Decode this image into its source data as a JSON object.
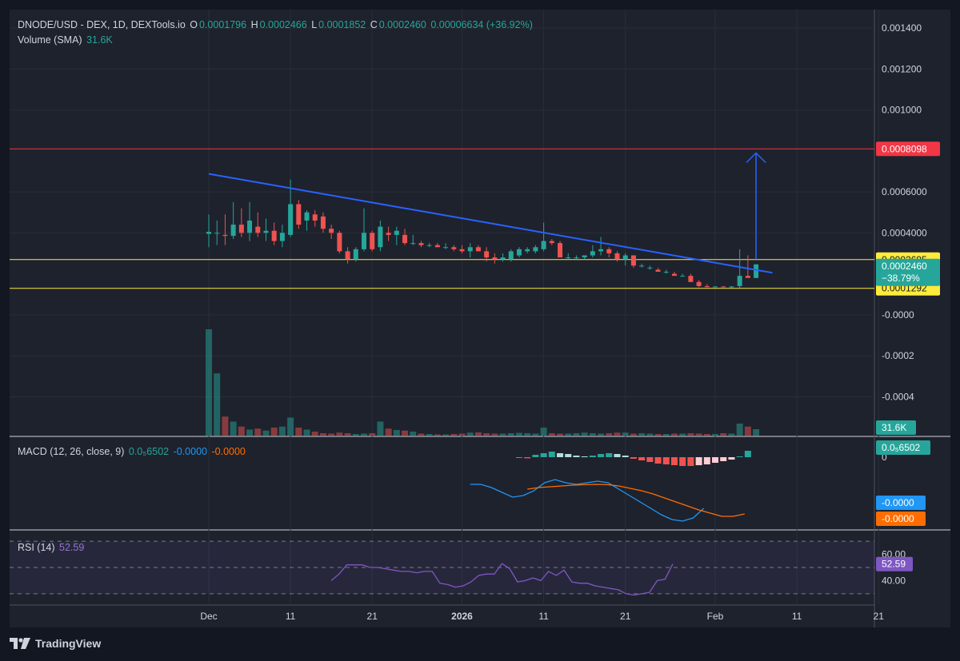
{
  "header": {
    "symbol": "DNODE/USD - DEX, 1D, DEXTools.io",
    "o_label": "O",
    "o_value": "0.0001796",
    "h_label": "H",
    "h_value": "0.0002466",
    "l_label": "L",
    "l_value": "0.0001852",
    "c_label": "C",
    "c_value": "0.0002460",
    "change": "0.00006634 (+36.92%)",
    "volume_label": "Volume (SMA)",
    "volume_value": "31.6K",
    "macd_label": "MACD (12, 26, close, 9)",
    "macd_hist": "0.0₅6502",
    "macd_line": "-0.0000",
    "macd_signal": "-0.0000",
    "rsi_label": "RSI (14)",
    "rsi_value": "52.59"
  },
  "brand": {
    "name": "TradingView"
  },
  "colors": {
    "background": "#131722",
    "panel": "#1e222d",
    "grid": "#2a2e39",
    "up": "#26a69a",
    "down": "#ef5350",
    "trendline": "#2962ff",
    "resistance": "#f23645",
    "support": "#ffeb3b",
    "macd": "#2196f3",
    "signal": "#ff6d00",
    "rsi": "#7e57c2"
  },
  "chart_data": [
    {
      "type": "candlestick",
      "title": "DNODE/USD - DEX, 1D, DEXTools.io",
      "x_tick_labels": [
        "Dec",
        "11",
        "21",
        "2026",
        "11",
        "21",
        "Feb",
        "11",
        "21"
      ],
      "y_tick_labels": [
        "0.001400",
        "0.001200",
        "0.001000",
        "0.0006000",
        "0.0004000",
        "-0.0000",
        "-0.0002",
        "-0.0004"
      ],
      "y_ticks": [
        0.0014,
        0.0012,
        0.001,
        0.0006,
        0.0004,
        0,
        -0.0002,
        -0.0004
      ],
      "ylim": [
        -0.00059,
        0.00149
      ],
      "candles": [
        {
          "date": "2025-12-01",
          "o": 0.000395,
          "h": 0.00049,
          "l": 0.00033,
          "c": 0.000405
        },
        {
          "date": "2025-12-02",
          "o": 0.0004,
          "h": 0.00046,
          "l": 0.00034,
          "c": 0.0004
        },
        {
          "date": "2025-12-03",
          "o": 0.00039,
          "h": 0.00049,
          "l": 0.00034,
          "c": 0.000385
        },
        {
          "date": "2025-12-04",
          "o": 0.000385,
          "h": 0.00055,
          "l": 0.00037,
          "c": 0.00044
        },
        {
          "date": "2025-12-05",
          "o": 0.00044,
          "h": 0.00052,
          "l": 0.00038,
          "c": 0.0004
        },
        {
          "date": "2025-12-06",
          "o": 0.0004,
          "h": 0.00055,
          "l": 0.00036,
          "c": 0.00046
        },
        {
          "date": "2025-12-07",
          "o": 0.00043,
          "h": 0.0005,
          "l": 0.00038,
          "c": 0.0004
        },
        {
          "date": "2025-12-08",
          "o": 0.0004,
          "h": 0.00047,
          "l": 0.00036,
          "c": 0.00041
        },
        {
          "date": "2025-12-09",
          "o": 0.00041,
          "h": 0.00045,
          "l": 0.00034,
          "c": 0.00036
        },
        {
          "date": "2025-12-10",
          "o": 0.00036,
          "h": 0.00044,
          "l": 0.00033,
          "c": 0.0004
        },
        {
          "date": "2025-12-11",
          "o": 0.00039,
          "h": 0.00066,
          "l": 0.00038,
          "c": 0.00054
        },
        {
          "date": "2025-12-12",
          "o": 0.00054,
          "h": 0.00056,
          "l": 0.00042,
          "c": 0.00044
        },
        {
          "date": "2025-12-13",
          "o": 0.00046,
          "h": 0.00051,
          "l": 0.00041,
          "c": 0.0005
        },
        {
          "date": "2025-12-14",
          "o": 0.00049,
          "h": 0.00051,
          "l": 0.00043,
          "c": 0.00046
        },
        {
          "date": "2025-12-15",
          "o": 0.00048,
          "h": 0.0005,
          "l": 0.0004,
          "c": 0.00042
        },
        {
          "date": "2025-12-16",
          "o": 0.00042,
          "h": 0.00044,
          "l": 0.00037,
          "c": 0.0004
        },
        {
          "date": "2025-12-17",
          "o": 0.0004,
          "h": 0.00041,
          "l": 0.0003,
          "c": 0.00031
        },
        {
          "date": "2025-12-18",
          "o": 0.00031,
          "h": 0.00033,
          "l": 0.00025,
          "c": 0.00027
        },
        {
          "date": "2025-12-19",
          "o": 0.00027,
          "h": 0.00033,
          "l": 0.00026,
          "c": 0.00032
        },
        {
          "date": "2025-12-20",
          "o": 0.00032,
          "h": 0.00052,
          "l": 0.00031,
          "c": 0.0004
        },
        {
          "date": "2025-12-21",
          "o": 0.0004,
          "h": 0.00041,
          "l": 0.00031,
          "c": 0.00032
        },
        {
          "date": "2025-12-22",
          "o": 0.00033,
          "h": 0.00046,
          "l": 0.00031,
          "c": 0.00043
        },
        {
          "date": "2025-12-23",
          "o": 0.0004,
          "h": 0.00043,
          "l": 0.00036,
          "c": 0.00039
        },
        {
          "date": "2025-12-24",
          "o": 0.00039,
          "h": 0.00043,
          "l": 0.00034,
          "c": 0.00041
        },
        {
          "date": "2025-12-25",
          "o": 0.00039,
          "h": 0.00042,
          "l": 0.00034,
          "c": 0.00035
        },
        {
          "date": "2025-12-26",
          "o": 0.00035,
          "h": 0.00039,
          "l": 0.00034,
          "c": 0.00035
        },
        {
          "date": "2025-12-27",
          "o": 0.00035,
          "h": 0.00036,
          "l": 0.00033,
          "c": 0.00034
        },
        {
          "date": "2025-12-28",
          "o": 0.00034,
          "h": 0.00035,
          "l": 0.00033,
          "c": 0.00034
        },
        {
          "date": "2025-12-29",
          "o": 0.00034,
          "h": 0.00035,
          "l": 0.00033,
          "c": 0.00033
        },
        {
          "date": "2025-12-30",
          "o": 0.00033,
          "h": 0.00035,
          "l": 0.00032,
          "c": 0.00033
        },
        {
          "date": "2025-12-31",
          "o": 0.00033,
          "h": 0.00034,
          "l": 0.00031,
          "c": 0.00032
        },
        {
          "date": "2026-01-01",
          "o": 0.00032,
          "h": 0.00034,
          "l": 0.0003,
          "c": 0.00031
        },
        {
          "date": "2026-01-02",
          "o": 0.00031,
          "h": 0.00035,
          "l": 0.00028,
          "c": 0.00033
        },
        {
          "date": "2026-01-03",
          "o": 0.00033,
          "h": 0.00034,
          "l": 0.00031,
          "c": 0.00031
        },
        {
          "date": "2026-01-04",
          "o": 0.00031,
          "h": 0.00033,
          "l": 0.00026,
          "c": 0.00028
        },
        {
          "date": "2026-01-05",
          "o": 0.00028,
          "h": 0.0003,
          "l": 0.00025,
          "c": 0.00027
        },
        {
          "date": "2026-01-06",
          "o": 0.00027,
          "h": 0.0003,
          "l": 0.00026,
          "c": 0.00028
        },
        {
          "date": "2026-01-07",
          "o": 0.00027,
          "h": 0.00032,
          "l": 0.00026,
          "c": 0.00031
        },
        {
          "date": "2026-01-08",
          "o": 0.00029,
          "h": 0.00033,
          "l": 0.00028,
          "c": 0.00032
        },
        {
          "date": "2026-01-09",
          "o": 0.00031,
          "h": 0.00033,
          "l": 0.0003,
          "c": 0.00032
        },
        {
          "date": "2026-01-10",
          "o": 0.00031,
          "h": 0.00034,
          "l": 0.0003,
          "c": 0.00033
        },
        {
          "date": "2026-01-11",
          "o": 0.00032,
          "h": 0.00045,
          "l": 0.00031,
          "c": 0.00036
        },
        {
          "date": "2026-01-12",
          "o": 0.00036,
          "h": 0.00037,
          "l": 0.00034,
          "c": 0.00035
        },
        {
          "date": "2026-01-13",
          "o": 0.00035,
          "h": 0.00036,
          "l": 0.00028,
          "c": 0.00028
        },
        {
          "date": "2026-01-14",
          "o": 0.00028,
          "h": 0.0003,
          "l": 0.00027,
          "c": 0.00028
        },
        {
          "date": "2026-01-15",
          "o": 0.00028,
          "h": 0.00029,
          "l": 0.00027,
          "c": 0.00028
        },
        {
          "date": "2026-01-16",
          "o": 0.00028,
          "h": 0.00029,
          "l": 0.00027,
          "c": 0.00029
        },
        {
          "date": "2026-01-17",
          "o": 0.00029,
          "h": 0.00034,
          "l": 0.00028,
          "c": 0.00031
        },
        {
          "date": "2026-01-18",
          "o": 0.00031,
          "h": 0.00038,
          "l": 0.00029,
          "c": 0.00032
        },
        {
          "date": "2026-01-19",
          "o": 0.00032,
          "h": 0.00033,
          "l": 0.00028,
          "c": 0.0003
        },
        {
          "date": "2026-01-20",
          "o": 0.0003,
          "h": 0.00031,
          "l": 0.00026,
          "c": 0.00027
        },
        {
          "date": "2026-01-21",
          "o": 0.00027,
          "h": 0.0003,
          "l": 0.00024,
          "c": 0.00029
        },
        {
          "date": "2026-01-22",
          "o": 0.00029,
          "h": 0.00029,
          "l": 0.00023,
          "c": 0.00024
        },
        {
          "date": "2026-01-23",
          "o": 0.00024,
          "h": 0.00025,
          "l": 0.00023,
          "c": 0.00024
        },
        {
          "date": "2026-01-24",
          "o": 0.00023,
          "h": 0.00024,
          "l": 0.00022,
          "c": 0.00023
        },
        {
          "date": "2026-01-25",
          "o": 0.00022,
          "h": 0.00023,
          "l": 0.00021,
          "c": 0.00021
        },
        {
          "date": "2026-01-26",
          "o": 0.00021,
          "h": 0.00022,
          "l": 0.0002,
          "c": 0.00021
        },
        {
          "date": "2026-01-27",
          "o": 0.0002,
          "h": 0.00021,
          "l": 0.00019,
          "c": 0.00019
        },
        {
          "date": "2026-01-28",
          "o": 0.00019,
          "h": 0.0002,
          "l": 0.00019,
          "c": 0.00019
        },
        {
          "date": "2026-01-29",
          "o": 0.00019,
          "h": 0.0002,
          "l": 0.00016,
          "c": 0.00016
        },
        {
          "date": "2026-01-30",
          "o": 0.00016,
          "h": 0.00017,
          "l": 0.000135,
          "c": 0.00014
        },
        {
          "date": "2026-01-31",
          "o": 0.00014,
          "h": 0.00015,
          "l": 0.000135,
          "c": 0.000135
        },
        {
          "date": "2026-02-01",
          "o": 0.000135,
          "h": 0.00014,
          "l": 0.000135,
          "c": 0.000138
        },
        {
          "date": "2026-02-02",
          "o": 0.000138,
          "h": 0.00014,
          "l": 0.000135,
          "c": 0.000135
        },
        {
          "date": "2026-02-03",
          "o": 0.000135,
          "h": 0.00014,
          "l": 0.00013,
          "c": 0.000138
        },
        {
          "date": "2026-02-04",
          "o": 0.00014,
          "h": 0.00032,
          "l": 0.00013,
          "c": 0.00019
        },
        {
          "date": "2026-02-05",
          "o": 0.00019,
          "h": 0.00029,
          "l": 0.00018,
          "c": 0.00018
        },
        {
          "date": "2026-02-06",
          "o": 0.0001796,
          "h": 0.0002466,
          "l": 0.0001852,
          "c": 0.000246
        }
      ],
      "trendline": [
        {
          "date": "2025-12-01",
          "value": 0.000688
        },
        {
          "date": "2026-02-08",
          "value": 0.000205
        }
      ],
      "horizontal_levels": [
        {
          "value": 0.0008098,
          "label": "0.0008098",
          "color": "#f23645"
        },
        {
          "value": 0.0002695,
          "label": "0.0002695",
          "color": "#ffeb3b"
        },
        {
          "value": 0.0001292,
          "label": "0.0001292",
          "color": "#ffeb3b"
        }
      ],
      "arrow": {
        "date": "2026-02-06",
        "from": 0.00027,
        "to": 0.00079
      },
      "last_price": {
        "label": "0.0002460",
        "change_pct": "−38.79%"
      }
    },
    {
      "type": "bar",
      "title": "Volume (SMA)",
      "last_label": "31.6K",
      "volume_k": [
        530,
        310,
        95,
        70,
        45,
        30,
        35,
        25,
        40,
        45,
        90,
        40,
        30,
        20,
        12,
        10,
        15,
        12,
        8,
        10,
        12,
        70,
        35,
        28,
        25,
        20,
        10,
        8,
        6,
        6,
        8,
        10,
        15,
        16,
        12,
        10,
        10,
        12,
        14,
        12,
        10,
        40,
        12,
        10,
        10,
        12,
        15,
        12,
        10,
        12,
        15,
        15,
        10,
        12,
        10,
        8,
        8,
        10,
        10,
        12,
        10,
        8,
        8,
        12,
        10,
        60,
        45,
        32
      ]
    },
    {
      "type": "bar",
      "title": "MACD (12, 26, close, 9)",
      "x_start": "2026-01-08",
      "zero_label": "0",
      "labels": {
        "hist": "0.0₅6502",
        "macd": "-0.0000",
        "signal": "-0.0000"
      },
      "histogram": [
        -0.5,
        -0.7,
        1.5,
        2.5,
        3.5,
        2.5,
        2.0,
        1.0,
        0.5,
        1.0,
        2.0,
        2.5,
        2.0,
        1.0,
        -1.0,
        -2.0,
        -3.0,
        -4.0,
        -4.5,
        -5.0,
        -5.5,
        -5.5,
        -5.0,
        -4.5,
        -3.5,
        -2.5,
        -1.5,
        0.5,
        4.0
      ],
      "macd": [
        -17,
        -17,
        -19,
        -22,
        -25,
        -24,
        -21,
        -16,
        -14,
        -16,
        -17,
        -16,
        -15,
        -16,
        -20,
        -24,
        -28,
        -32,
        -36,
        -39,
        -40,
        -38,
        -32
      ],
      "signal": [
        -20,
        -19,
        -18.5,
        -18,
        -17.5,
        -17.2,
        -17,
        -17.2,
        -18,
        -19.5,
        -21,
        -23,
        -25.5,
        -28,
        -30.5,
        -33,
        -35,
        -37,
        -37,
        -35.5
      ]
    },
    {
      "type": "line",
      "title": "RSI (14)",
      "y_tick_labels": [
        "60.00",
        "40.00"
      ],
      "bands": [
        70,
        30
      ],
      "midline": 50,
      "ylim": [
        22,
        78
      ],
      "last_label": "52.59",
      "x_start": "2025-12-16",
      "values": [
        40,
        45,
        52,
        52,
        52,
        50,
        50,
        49,
        48,
        47,
        47,
        46,
        47,
        47,
        38,
        37,
        35,
        36,
        39,
        44,
        45,
        45,
        53,
        49,
        39,
        40,
        42,
        40,
        47,
        44,
        48,
        39,
        38,
        38,
        36,
        35,
        34,
        33,
        30,
        29,
        30,
        31,
        40,
        41,
        52.59
      ]
    }
  ]
}
